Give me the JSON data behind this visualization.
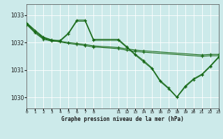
{
  "background_color": "#cceaea",
  "grid_color": "#ffffff",
  "line_color": "#1a6b1a",
  "title": "Graphe pression niveau de la mer (hPa)",
  "xlim": [
    0,
    23
  ],
  "ylim": [
    1029.6,
    1033.4
  ],
  "yticks": [
    1030,
    1031,
    1032,
    1033
  ],
  "xtick_positions": [
    0,
    1,
    2,
    3,
    4,
    5,
    6,
    7,
    8,
    11,
    12,
    13,
    14,
    15,
    16,
    17,
    18,
    19,
    20,
    21,
    22,
    23
  ],
  "xtick_labels": [
    "0",
    "1",
    "2",
    "3",
    "4",
    "5",
    "6",
    "7",
    "8",
    "11",
    "12",
    "13",
    "14",
    "15",
    "16",
    "17",
    "18",
    "19",
    "20",
    "21",
    "22",
    "23"
  ],
  "series": [
    {
      "x": [
        0,
        1,
        2,
        3,
        4,
        5,
        6,
        7,
        8,
        11,
        12,
        13,
        14,
        21,
        22,
        23
      ],
      "y": [
        1032.72,
        1032.45,
        1032.2,
        1032.1,
        1032.05,
        1032.0,
        1031.97,
        1031.93,
        1031.88,
        1031.82,
        1031.77,
        1031.73,
        1031.7,
        1031.55,
        1031.57,
        1031.57
      ]
    },
    {
      "x": [
        0,
        1,
        2,
        3,
        4,
        5,
        6,
        7,
        8,
        11,
        12,
        13,
        14,
        21,
        22,
        23
      ],
      "y": [
        1032.68,
        1032.4,
        1032.18,
        1032.08,
        1032.02,
        1031.97,
        1031.93,
        1031.89,
        1031.84,
        1031.78,
        1031.72,
        1031.68,
        1031.65,
        1031.5,
        1031.52,
        1031.52
      ]
    },
    {
      "x": [
        0,
        1,
        2,
        3,
        4,
        5,
        6,
        7,
        8,
        11,
        12,
        13,
        14,
        15,
        16,
        17,
        18,
        19,
        20,
        21,
        22,
        23
      ],
      "y": [
        1032.7,
        1032.4,
        1032.15,
        1032.08,
        1032.08,
        1032.35,
        1032.82,
        1032.82,
        1032.12,
        1032.12,
        1031.85,
        1031.58,
        1031.35,
        1031.08,
        1030.62,
        1030.35,
        1030.02,
        1030.42,
        1030.68,
        1030.85,
        1031.15,
        1031.48
      ]
    },
    {
      "x": [
        0,
        1,
        2,
        3,
        4,
        5,
        6,
        7,
        8,
        11,
        12,
        13,
        14,
        15,
        16,
        17,
        18,
        19,
        20,
        21,
        22,
        23
      ],
      "y": [
        1032.65,
        1032.35,
        1032.12,
        1032.05,
        1032.05,
        1032.32,
        1032.78,
        1032.78,
        1032.08,
        1032.08,
        1031.82,
        1031.55,
        1031.3,
        1031.05,
        1030.58,
        1030.32,
        1030.0,
        1030.38,
        1030.65,
        1030.82,
        1031.12,
        1031.45
      ]
    }
  ]
}
